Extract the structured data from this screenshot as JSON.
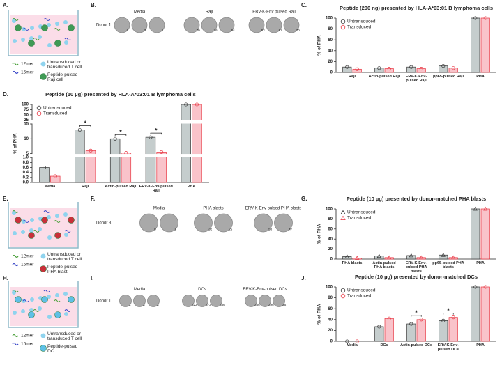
{
  "panel_labels": [
    "A.",
    "B.",
    "C.",
    "D.",
    "E.",
    "F.",
    "G.",
    "H.",
    "I.",
    "J."
  ],
  "schematics": [
    {
      "peptide_a": "12mer",
      "peptide_b": "15mer",
      "t_cell": "Untransduced or transduced T cell",
      "target": "Peptide-pulsed Raji cell"
    },
    {
      "peptide_a": "12mer",
      "peptide_b": "15mer",
      "t_cell": "Untransduced or transduced T cell",
      "target": "Peptide-pulsed PHA blast"
    },
    {
      "peptide_a": "12mer",
      "peptide_b": "15mer",
      "t_cell": "Untransduced or transduced T cell",
      "target": "Peptide-pulsed DC"
    }
  ],
  "wells": [
    {
      "donor": "Donor 1",
      "groups": [
        {
          "name": "Media",
          "counts": [
            0,
            3,
            5
          ]
        },
        {
          "name": "Raji",
          "counts": [
            70,
            76,
            64
          ]
        },
        {
          "name": "ERV-K-Env pulsed Raji",
          "counts": [
            63,
            62,
            70
          ]
        }
      ]
    },
    {
      "donor": "Donor 3",
      "groups": [
        {
          "name": "Media",
          "counts": [
            0,
            1
          ]
        },
        {
          "name": "PHA blasts",
          "counts": [
            32,
            25
          ]
        },
        {
          "name": "ERV-K-Env pulsed PHA blasts",
          "counts": [
            58,
            47
          ]
        }
      ]
    },
    {
      "donor": "Donor 1",
      "groups": [
        {
          "name": "Media",
          "counts": [
            1,
            3,
            3
          ]
        },
        {
          "name": "DCs",
          "counts": [
            322,
            373,
            386
          ]
        },
        {
          "name": "ERV-K-Env-pulsed DCs",
          "counts": [
            366,
            396,
            367
          ]
        }
      ]
    }
  ],
  "chart_data": [
    {
      "type": "bar",
      "title": "Peptide (200 ng) presented by HLA-A*03:01 B lymphoma cells",
      "y_label": "% of PHA",
      "legend": "top-left",
      "legend_marker": "circle",
      "categories": [
        "Raji",
        "Actin-pulsed Raji",
        "ERV-K-Env-pulsed Raji",
        "pp65-pulsed Raji",
        "PHA"
      ],
      "series": [
        {
          "name": "Untransduced",
          "color": "#c5cdcd",
          "edge_color": "#333333",
          "values": [
            10,
            8,
            10,
            12,
            100
          ]
        },
        {
          "name": "Transduced",
          "color": "#f9c3ca",
          "edge_color": "#e8333f",
          "values": [
            6,
            7,
            7,
            8,
            100
          ]
        }
      ],
      "ylim": [
        0,
        100
      ],
      "yticks": [
        0,
        20,
        40,
        60,
        80,
        100
      ]
    },
    {
      "type": "broken-bar",
      "title": "Peptide (10 µg) presented by HLA-A*03:01 B lymphoma cells",
      "y_label": "% of PHA",
      "legend": "top-left",
      "legend_marker": "circle",
      "categories": [
        "Media",
        "Raji",
        "Actin-pulsed Raji",
        "ERV-K-Env-pulsed Raji",
        "PHA"
      ],
      "series": [
        {
          "name": "Untransduced",
          "color": "#c5cdcd",
          "edge_color": "#333333",
          "values": [
            0.6,
            13,
            10,
            10.5,
            100
          ]
        },
        {
          "name": "Transduced",
          "color": "#f9c3ca",
          "edge_color": "#e8333f",
          "values": [
            0.25,
            6,
            5.2,
            5.5,
            100
          ]
        }
      ],
      "segments": [
        {
          "ylim": [
            0,
            1
          ],
          "yticks": [
            {
              "value": 0,
              "label": "0.0"
            },
            0.2,
            0.4,
            0.6,
            0.8,
            {
              "value": 1,
              "label": "1.0"
            }
          ]
        },
        {
          "ylim": [
            5,
            15
          ],
          "yticks": [
            5,
            10,
            15
          ]
        },
        {
          "ylim": [
            25,
            100
          ],
          "yticks": [
            25,
            50,
            75,
            100
          ]
        }
      ],
      "annotations": [
        {
          "category": "Raji",
          "label": "*"
        },
        {
          "category": "Actin-pulsed Raji",
          "label": "*"
        },
        {
          "category": "ERV-K-Env-pulsed Raji",
          "label": "*"
        }
      ]
    },
    {
      "type": "bar",
      "title": "Peptide (10 µg) presented by donor-matched PHA blasts",
      "y_label": "% of PHA",
      "legend": "top-left",
      "legend_marker": "triangle",
      "categories": [
        "PHA blasts",
        "Actin-pulsed PHA blasts",
        "ERV-K-Env-pulsed PHA blasts",
        "pp65-pulsed PHA blasts",
        "PHA"
      ],
      "series": [
        {
          "name": "Untransduced",
          "color": "#c5cdcd",
          "edge_color": "#333333",
          "values": [
            5,
            6,
            7,
            8,
            100
          ]
        },
        {
          "name": "Transduced",
          "color": "#f9c3ca",
          "edge_color": "#e8333f",
          "values": [
            2,
            3,
            3,
            3,
            100
          ]
        }
      ],
      "ylim": [
        0,
        100
      ],
      "yticks": [
        0,
        20,
        40,
        60,
        80,
        100
      ]
    },
    {
      "type": "bar",
      "title": "Peptide (10 µg) presented by donor-matched DCs",
      "y_label": "% of PHA",
      "legend": "top-left",
      "legend_marker": "circle",
      "categories": [
        "Media",
        "DCs",
        "Actin-pulsed DCs",
        "ERV-K-Env-pulsed DCs",
        "PHA"
      ],
      "series": [
        {
          "name": "Untransduced",
          "color": "#c5cdcd",
          "edge_color": "#333333",
          "values": [
            0,
            27,
            32,
            38,
            100
          ]
        },
        {
          "name": "Transduced",
          "color": "#f9c3ca",
          "edge_color": "#e8333f",
          "values": [
            0,
            42,
            40,
            44,
            100
          ]
        }
      ],
      "ylim": [
        0,
        100
      ],
      "yticks": [
        0,
        20,
        40,
        60,
        80,
        100
      ],
      "annotations": [
        {
          "category": "Actin-pulsed DCs",
          "label": "*"
        },
        {
          "category": "ERV-K-Env-pulsed DCs",
          "label": "*"
        }
      ]
    }
  ]
}
